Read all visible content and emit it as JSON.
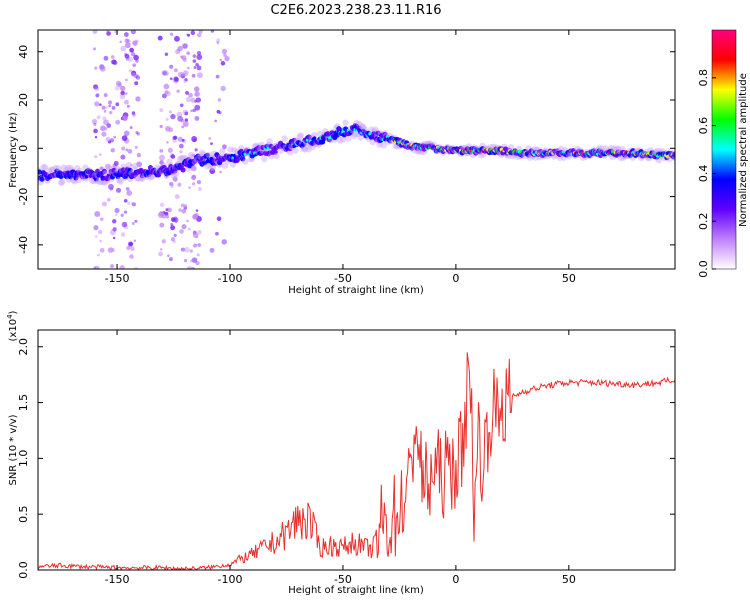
{
  "title": "C2E6.2023.238.23.11.R16",
  "chart_data": [
    {
      "type": "heatmap",
      "name": "spectrogram",
      "xlabel": "Height of straight line (km)",
      "ylabel": "Frequency (Hz)",
      "xlim": [
        -185,
        97
      ],
      "ylim": [
        -50,
        49
      ],
      "xticks": [
        -150,
        -100,
        -50,
        0,
        50
      ],
      "xtick_labels": [
        "-150",
        "-100",
        "-50",
        "0",
        "50"
      ],
      "yticks": [
        40,
        20,
        0,
        -20,
        -40
      ],
      "ytick_labels": [
        "40",
        "20",
        "0",
        "-20",
        "-40"
      ],
      "ridge": {
        "x": [
          -185,
          -170,
          -155,
          -140,
          -125,
          -115,
          -100,
          -85,
          -70,
          -60,
          -50,
          -45,
          -40,
          -30,
          -20,
          -10,
          0,
          10,
          20,
          30,
          50,
          70,
          80,
          90,
          97
        ],
        "freq": [
          -11,
          -11,
          -11,
          -10,
          -9,
          -5,
          -4,
          -1,
          2,
          4,
          7,
          8,
          6,
          4,
          1,
          0,
          -1,
          -1,
          -1,
          -2,
          -2,
          -2,
          -2,
          -3,
          -3
        ]
      },
      "colorbar": {
        "label": "Normalized spectral amplitude",
        "range": [
          0,
          1
        ],
        "ticks": [
          0.0,
          0.2,
          0.4,
          0.6,
          0.8
        ],
        "tick_labels": [
          "0.0",
          "0.2",
          "0.4",
          "0.6",
          "0.8"
        ],
        "colors": [
          "#ffffff",
          "#c080ff",
          "#6000ff",
          "#0000ff",
          "#00ffff",
          "#00ff00",
          "#ffff00",
          "#ff0000",
          "#ff0080"
        ]
      }
    },
    {
      "type": "line",
      "name": "snr",
      "xlabel": "Height of straight line (km)",
      "ylabel": "SNR (10 * v/v)",
      "y_multiplier": "(x10",
      "y_exponent": "4",
      "y_multiplier_close": ")",
      "xlim": [
        -185,
        97
      ],
      "ylim": [
        0,
        2.15
      ],
      "xticks": [
        -150,
        -100,
        -50,
        0,
        50
      ],
      "xtick_labels": [
        "-150",
        "-100",
        "-50",
        "0",
        "50"
      ],
      "yticks": [
        0.0,
        0.5,
        1.0,
        1.5,
        2.0
      ],
      "ytick_labels": [
        "0.0",
        "0.5",
        "1.0",
        "1.5",
        "2.0"
      ],
      "color": "#e8302c",
      "series": [
        {
          "name": "SNR",
          "x": [
            -185,
            -175,
            -165,
            -150,
            -140,
            -130,
            -120,
            -110,
            -100,
            -95,
            -90,
            -85,
            -80,
            -75,
            -70,
            -65,
            -60,
            -55,
            -50,
            -45,
            -40,
            -37,
            -33,
            -30,
            -25,
            -20,
            -18,
            -15,
            -12,
            -10,
            -5,
            0,
            3,
            5,
            7,
            8,
            10,
            12,
            15,
            20,
            25,
            30,
            40,
            50,
            60,
            70,
            80,
            90,
            97
          ],
          "y": [
            0.03,
            0.04,
            0.03,
            0.02,
            0.02,
            0.02,
            0.01,
            0.02,
            0.05,
            0.1,
            0.14,
            0.2,
            0.25,
            0.33,
            0.45,
            0.45,
            0.2,
            0.22,
            0.2,
            0.25,
            0.2,
            0.18,
            0.4,
            0.4,
            0.55,
            0.8,
            1.4,
            0.8,
            0.75,
            0.9,
            0.85,
            0.95,
            1.1,
            1.6,
            1.8,
            0.25,
            1.3,
            0.9,
            1.4,
            1.45,
            1.55,
            1.6,
            1.65,
            1.68,
            1.68,
            1.67,
            1.66,
            1.68,
            1.7
          ]
        }
      ]
    }
  ]
}
